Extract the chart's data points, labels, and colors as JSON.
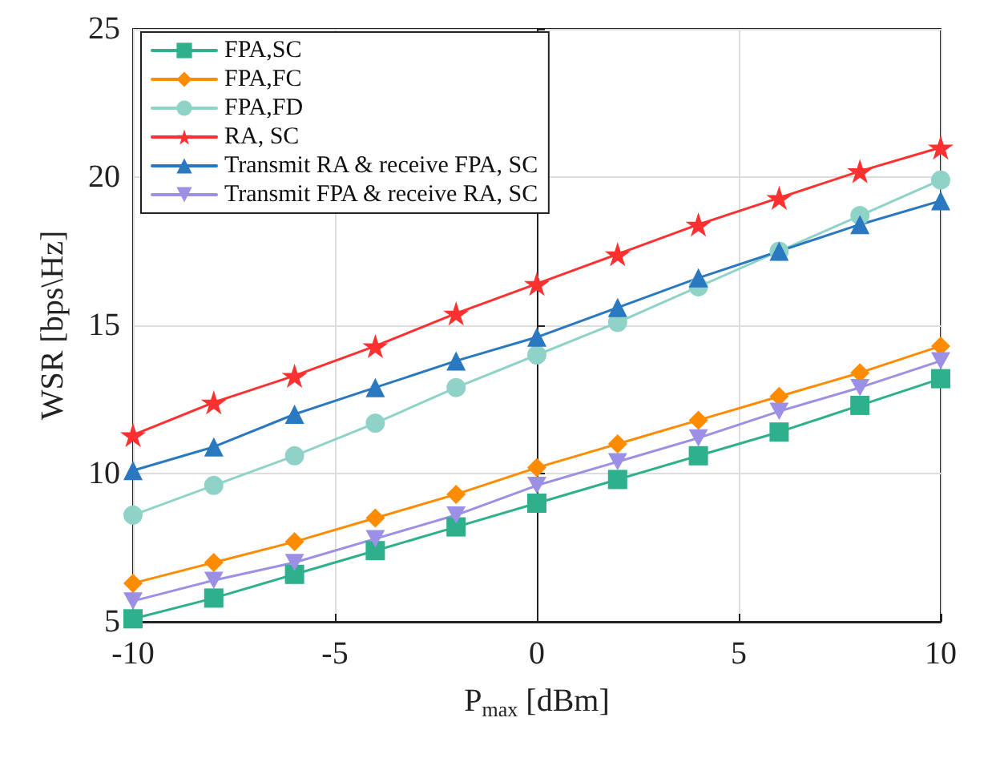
{
  "chart_data": {
    "type": "line",
    "xlabel": "P$_{max}$ [dBm]",
    "ylabel": "WSR [bps\\Hz]",
    "x": [
      -10,
      -8,
      -6,
      -4,
      -2,
      0,
      2,
      4,
      6,
      8,
      10
    ],
    "xlim": [
      -10,
      10
    ],
    "xticks": [
      -10,
      -5,
      0,
      5,
      10
    ],
    "ylim": [
      5,
      25
    ],
    "yticks": [
      5,
      10,
      15,
      20,
      25
    ],
    "grid": true,
    "legend": "top left",
    "line_style": "solid",
    "series": [
      {
        "name": "FPA,SC",
        "color": "#2eb08c",
        "marker": "square",
        "values": [
          5.1,
          5.8,
          6.6,
          7.4,
          8.2,
          9.0,
          9.8,
          10.6,
          11.4,
          12.3,
          13.2
        ]
      },
      {
        "name": "FPA,FC",
        "color": "#ff8c00",
        "marker": "diamond",
        "values": [
          6.3,
          7.0,
          7.7,
          8.5,
          9.3,
          10.2,
          11.0,
          11.8,
          12.6,
          13.4,
          14.3
        ]
      },
      {
        "name": "FPA,FD",
        "color": "#8fd3c8",
        "marker": "circle",
        "values": [
          8.6,
          9.6,
          10.6,
          11.7,
          12.9,
          14.0,
          15.1,
          16.3,
          17.5,
          18.7,
          19.9
        ]
      },
      {
        "name": "RA, SC",
        "color": "#ff3030",
        "marker": "star",
        "values": [
          11.3,
          12.4,
          13.3,
          14.3,
          15.4,
          16.4,
          17.4,
          18.4,
          19.3,
          20.2,
          21.0
        ]
      },
      {
        "name": "Transmit RA & receive FPA, SC",
        "color": "#2a78c0",
        "marker": "triangle",
        "values": [
          10.1,
          10.9,
          12.0,
          12.9,
          13.8,
          14.6,
          15.6,
          16.6,
          17.5,
          18.4,
          19.2
        ]
      },
      {
        "name": "Transmit FPA & receive RA, SC",
        "color": "#9b8fe6",
        "marker": "triangle-down",
        "values": [
          5.7,
          6.4,
          7.0,
          7.8,
          8.6,
          9.6,
          10.4,
          11.2,
          12.1,
          12.9,
          13.8
        ]
      }
    ]
  }
}
